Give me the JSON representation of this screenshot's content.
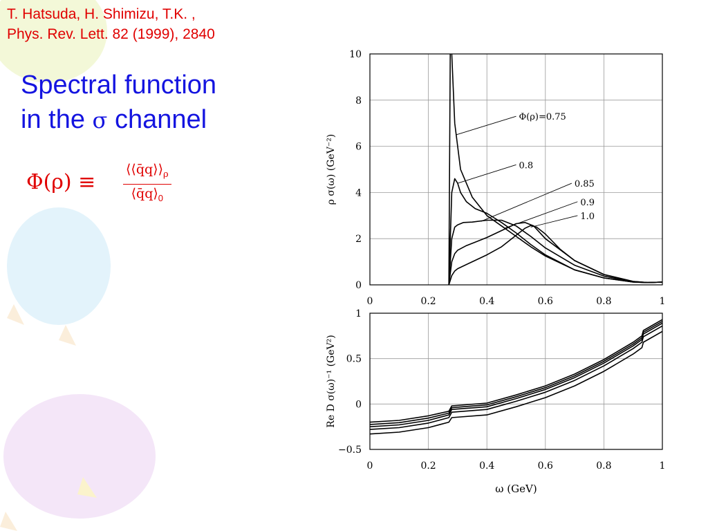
{
  "citation": {
    "line1": "T. Hatsuda, H. Shimizu, T.K. ,",
    "line2": "Phys. Rev. Lett. 82 (1999), 2840"
  },
  "title": {
    "line1": "Spectral function",
    "line2_a": "in the",
    "line2_sym": "σ",
    "line2_b": "channel"
  },
  "formula": {
    "lhs": "Φ(ρ) ≡",
    "numerator": "⟨⟨q̄q⟩⟩",
    "numerator_sub": "ρ",
    "denominator": "⟨q̄q⟩",
    "denominator_sub": "0"
  },
  "colors": {
    "citation": "#e00000",
    "title": "#1414e0",
    "curve": "#000000"
  },
  "chart_data": [
    {
      "type": "line",
      "panel": "top",
      "ylabel": "ρ σ(ω)  (GeV⁻²)",
      "xlim": [
        0,
        1
      ],
      "ylim": [
        0,
        10
      ],
      "xticks": [
        "0",
        "0.2",
        "0.4",
        "0.6",
        "0.8",
        "1"
      ],
      "yticks": [
        "0",
        "2",
        "4",
        "6",
        "8",
        "10"
      ],
      "grid": true,
      "series": [
        {
          "name": "Φ(ρ)=0.75",
          "x": [
            0.27,
            0.275,
            0.28,
            0.29,
            0.31,
            0.35,
            0.4,
            0.45,
            0.5,
            0.55,
            0.6,
            0.7,
            0.8,
            0.9,
            0.95,
            1.0
          ],
          "y": [
            0,
            10.5,
            10,
            7,
            5.0,
            3.8,
            3.0,
            2.55,
            2.1,
            1.65,
            1.25,
            0.65,
            0.3,
            0.12,
            0.1,
            0.12
          ]
        },
        {
          "name": "0.8",
          "x": [
            0.27,
            0.28,
            0.29,
            0.3,
            0.31,
            0.33,
            0.36,
            0.4,
            0.45,
            0.5,
            0.55,
            0.6,
            0.7,
            0.8,
            0.9,
            0.95,
            1.0
          ],
          "y": [
            0,
            4.0,
            4.6,
            4.4,
            4.0,
            3.6,
            3.3,
            3.1,
            2.7,
            2.25,
            1.75,
            1.3,
            0.65,
            0.3,
            0.12,
            0.1,
            0.12
          ]
        },
        {
          "name": "0.85",
          "x": [
            0.27,
            0.28,
            0.29,
            0.3,
            0.32,
            0.35,
            0.4,
            0.45,
            0.5,
            0.55,
            0.6,
            0.7,
            0.8,
            0.9,
            0.95,
            1.0
          ],
          "y": [
            0,
            2.0,
            2.5,
            2.6,
            2.7,
            2.72,
            2.8,
            2.8,
            2.55,
            2.1,
            1.6,
            0.85,
            0.38,
            0.13,
            0.1,
            0.12
          ]
        },
        {
          "name": "0.9",
          "x": [
            0.27,
            0.28,
            0.29,
            0.3,
            0.33,
            0.36,
            0.4,
            0.45,
            0.5,
            0.53,
            0.56,
            0.6,
            0.7,
            0.8,
            0.9,
            0.95,
            1.0
          ],
          "y": [
            0,
            1.0,
            1.35,
            1.5,
            1.7,
            1.85,
            2.05,
            2.35,
            2.65,
            2.7,
            2.55,
            2.0,
            1.05,
            0.45,
            0.15,
            0.1,
            0.12
          ]
        },
        {
          "name": "1.0",
          "x": [
            0.27,
            0.28,
            0.29,
            0.3,
            0.35,
            0.4,
            0.45,
            0.5,
            0.53,
            0.55,
            0.57,
            0.6,
            0.65,
            0.7,
            0.8,
            0.9,
            0.95,
            1.0
          ],
          "y": [
            0,
            0.4,
            0.6,
            0.7,
            1.0,
            1.3,
            1.65,
            2.15,
            2.45,
            2.57,
            2.5,
            2.2,
            1.55,
            1.05,
            0.45,
            0.15,
            0.1,
            0.12
          ]
        }
      ],
      "annotations": [
        {
          "text": "Φ(ρ)=0.75",
          "series": 0,
          "point": [
            0.295,
            6.5
          ],
          "label_at": [
            0.5,
            7.3
          ]
        },
        {
          "text": "0.8",
          "series": 1,
          "point": [
            0.3,
            4.4
          ],
          "label_at": [
            0.5,
            5.2
          ]
        },
        {
          "text": "0.85",
          "series": 2,
          "point": [
            0.38,
            2.75
          ],
          "label_at": [
            0.69,
            4.4
          ]
        },
        {
          "text": "0.9",
          "series": 3,
          "point": [
            0.46,
            2.45
          ],
          "label_at": [
            0.71,
            3.6
          ]
        },
        {
          "text": "1.0",
          "series": 4,
          "point": [
            0.55,
            2.5
          ],
          "label_at": [
            0.71,
            3.0
          ]
        }
      ]
    },
    {
      "type": "line",
      "panel": "bottom",
      "xlabel": "ω (GeV)",
      "ylabel": "Re D σ(ω)⁻¹  (GeV²)",
      "xlim": [
        0,
        1
      ],
      "ylim": [
        -0.5,
        1
      ],
      "xticks": [
        "0",
        "0.2",
        "0.4",
        "0.6",
        "0.8",
        "1"
      ],
      "yticks": [
        "−0.5",
        "0",
        "0.5",
        "1"
      ],
      "grid": true,
      "series": [
        {
          "x": [
            0,
            0.1,
            0.2,
            0.27,
            0.28,
            0.4,
            0.5,
            0.6,
            0.7,
            0.8,
            0.9,
            0.93,
            0.935,
            1.0
          ],
          "y": [
            -0.2,
            -0.18,
            -0.13,
            -0.08,
            -0.02,
            0.01,
            0.1,
            0.2,
            0.33,
            0.49,
            0.68,
            0.75,
            0.81,
            0.93
          ]
        },
        {
          "x": [
            0,
            0.1,
            0.2,
            0.27,
            0.28,
            0.4,
            0.5,
            0.6,
            0.7,
            0.8,
            0.9,
            0.93,
            0.935,
            1.0
          ],
          "y": [
            -0.225,
            -0.205,
            -0.155,
            -0.1,
            -0.04,
            -0.01,
            0.08,
            0.18,
            0.31,
            0.47,
            0.66,
            0.73,
            0.79,
            0.91
          ]
        },
        {
          "x": [
            0,
            0.1,
            0.2,
            0.27,
            0.28,
            0.4,
            0.5,
            0.6,
            0.7,
            0.8,
            0.9,
            0.93,
            0.935,
            1.0
          ],
          "y": [
            -0.25,
            -0.23,
            -0.18,
            -0.12,
            -0.06,
            -0.03,
            0.06,
            0.16,
            0.29,
            0.45,
            0.64,
            0.71,
            0.77,
            0.89
          ]
        },
        {
          "x": [
            0,
            0.1,
            0.2,
            0.27,
            0.28,
            0.4,
            0.5,
            0.6,
            0.7,
            0.8,
            0.9,
            0.93,
            0.935,
            1.0
          ],
          "y": [
            -0.28,
            -0.26,
            -0.21,
            -0.15,
            -0.09,
            -0.06,
            0.03,
            0.13,
            0.26,
            0.42,
            0.61,
            0.68,
            0.74,
            0.86
          ]
        },
        {
          "x": [
            0,
            0.1,
            0.2,
            0.27,
            0.28,
            0.4,
            0.5,
            0.6,
            0.7,
            0.8,
            0.9,
            0.93,
            0.935,
            1.0
          ],
          "y": [
            -0.33,
            -0.31,
            -0.26,
            -0.2,
            -0.15,
            -0.12,
            -0.03,
            0.07,
            0.2,
            0.36,
            0.55,
            0.62,
            0.68,
            0.8
          ]
        }
      ]
    }
  ]
}
